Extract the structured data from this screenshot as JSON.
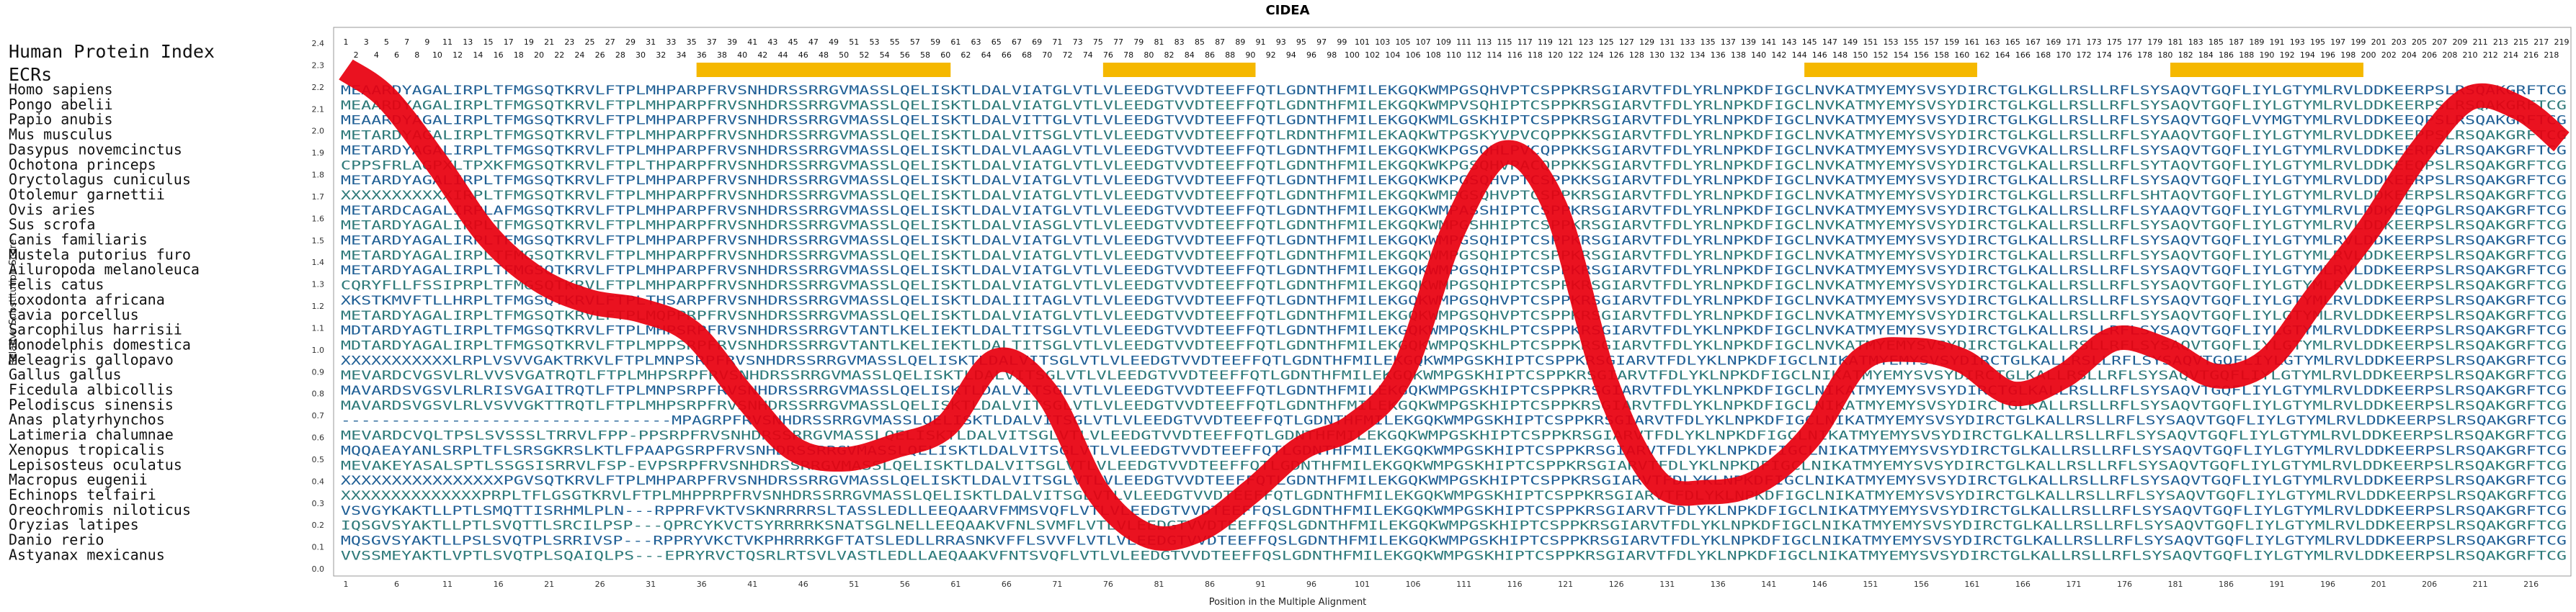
{
  "chart_data": {
    "type": "line",
    "title": "CIDEA",
    "xlabel": "Position in the Multiple Alignment",
    "ylabel": "Relative Substitution Score",
    "xlim": [
      1,
      219
    ],
    "ylim": [
      0.0,
      2.4
    ],
    "yticks": [
      "0.0",
      "0.1",
      "0.2",
      "0.3",
      "0.4",
      "0.5",
      "0.6",
      "0.7",
      "0.8",
      "0.9",
      "1.0",
      "1.1",
      "1.2",
      "1.3",
      "1.4",
      "1.5",
      "1.6",
      "1.7",
      "1.8",
      "1.9",
      "2.0",
      "2.1",
      "2.2",
      "2.3",
      "2.4"
    ],
    "xticks": [
      "1",
      "6",
      "11",
      "16",
      "21",
      "26",
      "31",
      "36",
      "41",
      "46",
      "51",
      "56",
      "61",
      "66",
      "71",
      "76",
      "81",
      "86",
      "91",
      "96",
      "101",
      "106",
      "111",
      "116",
      "121",
      "126",
      "131",
      "136",
      "141",
      "146",
      "151",
      "156",
      "161",
      "166",
      "171",
      "176",
      "181",
      "186",
      "191",
      "196",
      "201",
      "206",
      "211",
      "216"
    ],
    "top_label": "Human Protein Index",
    "ecrs_label": "ECRs",
    "ecr_regions": [
      [
        36,
        60
      ],
      [
        76,
        90
      ],
      [
        145,
        161
      ],
      [
        181,
        199
      ]
    ],
    "ecr_color": "#f5b800",
    "line_color": "#e8000f",
    "species": [
      "Homo sapiens",
      "Pongo abelii",
      "Papio anubis",
      "Mus musculus",
      "Dasypus novemcinctus",
      "Ochotona princeps",
      "Oryctolagus cuniculus",
      "Otolemur garnettii",
      "Ovis aries",
      "Sus scrofa",
      "Canis familiaris",
      "Mustela putorius furo",
      "Ailuropoda melanoleuca",
      "Felis catus",
      "Loxodonta africana",
      "Cavia porcellus",
      "Sarcophilus harrisii",
      "Monodelphis domestica",
      "Meleagris gallopavo",
      "Gallus gallus",
      "Ficedula albicollis",
      "Pelodiscus sinensis",
      "Anas platyrhynchos",
      "Latimeria chalumnae",
      "Xenopus tropicalis",
      "Lepisosteus oculatus",
      "Macropus eugenii",
      "Echinops telfairi",
      "Oreochromis niloticus",
      "Oryzias latipes",
      "Danio rerio",
      "Astyanax mexicanus"
    ],
    "sequences": [
      "MEAARDYAGALIRPLTFMGSQTKRVLFTPLMHPARPFRVSNHDRSSRRGVMASSLQELISKTLDALVIATGLVTLVLEEDGTVVDTEEFFQTLGDNTHFMILEKGQKWMPGSQHVPTCSPPKRSGIARVTFDLYRLNPKDFIGCLNVKATMYEMYSVSYDIRCTGLKGLLRSLLRFLSYSAQVTGQFLIYLGTYMLRVLDDKEERPSLRSQAKGRFTCG",
      "MEAARDYAGALIRPLTFMGSQTKRVLFTPLMHPARPFRVSNHDRSSRRGVMASSLQELISKTLDALVIATGLVTLVLEEDGTVVDTEEFFQTLGDNTHFMILEKGQKWMPVSQHIPTCSPPKRSGIARVTFDLYRLNPKDFIGCLNVKATMYEMYSVSYDIRCTGLKGLLRSLLRFLSYSAQVTGQFLIYLGTYMLRVLDDKEERPSLRSQAKGRFTCG",
      "MEAARDYAGALIRPLTFMGSQTKRVLFTPLMHPARPFRVSNHDRSSRRGVMASSLQELISKTLDALVITTGLVTLVLEEDGTVVDTEEFFQTLGDNTHFMILEKGQKWMLGSKHIPTCSPPKRSGIARVTFDLYRLNPKDFIGCLNVKATMYEMYSVSYDIRCTGLKGLLRSLLRFLSYSAQVTGQFLVYMGTYMLRVLDDKEEQPSLRSQAKGRFTCG",
      "METARDYAGALIRPLTFMGSQTKRVLFTPLMHPARPFRVSNHDRSSRRGVMASSLQELISKTLDALVITSGLVTLVLEEDGTVVDTEEFFQTLRDNTHFMILEKAQKWTPGSKYVPVCQPPKKSGIARVTFDLYRLNPKDFIGCLNVKATMYEMYSVSYDIRCTGLKGLLRSLLRFLSYAAQVTGQFLIYLGTYMLRVLDDKEEPPSLRSQAKGRFTCG",
      "METARDYAGALIRPLTFMGSQTKRVLFTPLMHPARPFRVSNHDRSSRRGVMASSLQELISKTLDALVLAAGLVTLVLEEDGTVVDTEEFFQTLGDNTHFMILEKGQKWKPGSQHLPVCQPPKKSGIARVTFDLYRLNPKDFIGCLNVKATMYEMYSVSYDIRCVGVKALLRSLLRFLSYSAQVTGQFLIYLGTYMLRVLDDKEERPGLRSQAKGRFTCG",
      "CPPSFRLAGPXLTPXKFMGSQTKRVLFTPLTHPARPFRVSNHDRSSRRGVMASSLQELISKTLDALVIATGLVTLVLEEDGTVVDTEEFFQTLGDNTHFMILEKGQKWKPGSQHVPACQPPKKSGIARVTFDLYRLNPKDFIGCLNVKATMYEMYSVSYDIRCTGLKALLRSLLRFLSYTAQVTGQFLIYLGTYMLRVLDDKEEQPSLRSQAKGRFTCG",
      "METARDYAGALIRPLTFMGSQTKRVLFTPLMHPARPFRVSNHDRSSRRGVMASSLQELISKTLDALVIATGLVTLVLEEDGTVVDTEEFFQTLGDNTHFMILEKGQKWKPGSQHVPTCSPPKKSGIARVTFDLYRLNPKDFIGCLNVKATMYEMYSVSYDIRCTGLKALLRSLLRFLSYSAQVTGQFLIYLGTYMLRVLDDKEERPSLRSQAKGRFTCG",
      "XXXXXXXXXXXIRPLTFMGSQTKRVLFTPLMHPARPFRVSNHDRSSRRGVMASSLQELISKTLDALVIATGLVTLVLEEDGTVVDTEEFFQTLGDNTHFMILEKGQKWMPGSQHVPTCSPPKRSGIARVTFDLYRLNPKDFIGCLNVKATMYEMYSVSYDIRCTGLKGLLRSLLRFLSHTAQVTGQFLIYLGTYMLRVLDDKEERPSLRSQAKGRFTCG",
      "METARDCAGALIRPLAFMGSQTKRVLFTPLMHPARPFRVSNHDRSSRRGVMASSLQELISKTLDALVIATGLVTLVLEEDGTVVDTEEFFQTLGDNTHFMILEKGQKWMPASSHIPTCSPPKRSGIARVTFDLYRLNPKDFIGCLNVKATMYEMYSVSYDIRCTGLKALLRSLLRFLSYAAQVTGQFLIYLGTYMLRVLDDKEEQPGLRSQAKGRFTCG",
      "METARDYAGALIRPLTFMGSQTKRVLFTPLMHPARPFRVSNHDRSSRRGVMASSLQELISKTLDALVIASGLVTLVLEEDGTVVDTEEFFQTLGDNTHFMILEKGQKWMPGSHHIPTCSPPKRSGIARVTFDLYRLNPKDFIGCLNVKATMYEMYSVSYDIRCTGLKALLRSLLRFLSYSAQVTGQFLIYLGTYMLRVLDDKEERPSLRSQAKGRFTCG",
      "METARDYAGALIRPLTFMGSQTKRVLFTPLMHPARPFRVSNHDRSSRRGVMASSLQELISKTLDALVIATGLVTLVLEEDGTVVDTEEFFQTLGDNTHFMILEKGQKWMPGSQHIPTCSPPKRSGIARVTFDLYRLNPKDFIGCLNVKATMYEMYSVSYDIRCTGLKALLRSLLRFLSYSAQVTGQFLIYLGTYMLRVLDDKEERPSLRSQAKGRFTCG",
      "METARDYAGALIRPLTFMGSQTKRVLFTPLMHPARPFRVSNHDRSSRRGVMASSLQELISKTLDALVIATGLVTLVLEEDGTVVDTEEFFQTLGDNTHFMILEKGQKWMPGSQHIPTCSPPKRSGIARVTFDLYRLNPKDFIGCLNVKATMYEMYSVSYDIRCTGLKALLRSLLRFLSYSAQVTGQFLIYLGTYMLRVLDDKEERPSLRSQAKGRFTCG",
      "METARDYAGALIRPLTFMGSQTKRVLFTPLMHPARPFRVSNHDRSSRRGVMASSLQELISKTLDALVIATGLVTLVLEEDGTVVDTEEFFQTLGDNTHFMILEKGQKWMPGSQHIPTCSPPKRSGIARVTFDLYRLNPKDFIGCLNVKATMYEMYSVSYDIRCTGLKALLRSLLRFLSYSAQVTGQFLIYLGTYMLRVLDDKEERPSLRSQAKGRFTCG",
      "CQRYFLLFSSIPRPLTFMGSQTKRVLFTPLMHPARPFRVSNHDRSSRRGVMASSLQELISKTLDALVIATGLVTLVLEEDGTVVDTEEFFQTLGDNTHFMILEKGQKWMPGSQHIPTCSPPKRSGIARVTFDLYRLNPKDFIGCLNVKATMYEMYSVSYDIRCTGLKALLRSLLRFLSYSAQVTGQFLIYLGTYMLRVLDDKEERPSLRSQAKGRFTCG",
      "XKSTKMVFTLLHRPLTFMGSQTKRVLFTPLTHSARPFRVSNHDRSSRRGVMASSLQELISKTLDALIITAGLVTLVLEEDGTVVDTEEFFQTLGDNTHFMILEKGQKWMPGSQHVPTCSPPKRSGIARVTFDLYRLNPKDFIGCLNVKATMYEMYSVSYDIRCTGLKALLRSLLRFLSYSAQVTGQFLIYLGTYMLRVLDDKEERPSLRSQAKGRFTCG",
      "METARDYAGALIRPLTFMGSQTKRVLFTPLMQPPRPFRVSNHDRSSRRGVMASSLQELISKTLDALVIATGLVTLVLEEDGTVVDTEEFFQTLGDNTHFMILEKGQKWMPGSQHVPTCSPPKRSGIARVTFDLYRLNPKDFIGCLNVKATMYEMYSVSYDIRCTGLKALLRSLLRFLSYSAQVTGQFLIYLGTYMLRVLDDKEERPSLRSQAKGRFTCG",
      "MDTARDYAGTLIRPLTFMGSQTKRVLFTPLMHPSRPFRVSNHDRSSRRGVTANTLKELIEKTLDALTITSGLVTLVLEEDGTVVDTEEFFQTLGDNTHFMILEKGQKWMPQSKHLPTCSPPKRSGIARVTFDLYKLNPKDFIGCLNVKATMYEMYSVSYDIRCTGLKALLRSLLRFLSYSAQVTGQFLIYLGTYMLRVLDDKEERPSLRSQAKGRFTCG",
      "MDTARDYAGALIRPLTFMGSQTKRVLFTPLMPPSRPFRVSNHDRSSRRGVTANTLKELIEKTLDALTITSGLVTLVLEEDGTVVDTEEFFQTLGDNTHFMILEKGQKWMPQSKHLPTCSPPKRSGIARVTFDLYKLNPKDFIGCLNVKATMYEMYSVSYDIRCTGLKALLRSLLRFLSYSAQVTGQFLIYLGTYMLRVLDDKEERPSLRSQAKGRFTCG",
      "XXXXXXXXXXXLRPLVSVVGAKTRKVLFTPLMNPSRPFRVSNHDRSSRRGVMASSLQELISKTLDALVITSGLVTLVLEEDGTVVDTEEFFQTLGDNTHFMILEKGQKWMPGSKHIPTCSPPKRSGIARVTFDLYKLNPKDFIGCLNIKATMYEMYSVSYDIRCTGLKALLRSLLRFLSYSAQVTGQFLIYLGTYMLRVLDDKEERPSLRSQAKGRFTCG",
      "MEVARDCVGSVLRLVVSVGATRQTLFTPLMHPSRPFRVSNHDRSSRRGVMASSLQELISKTLDALVITSGLVTLVLEEDGTVVDTEEFFQTLGDNTHFMILEKGQKWMPGSKHIPTCSPPKRSGIARVTFDLYKLNPKDFIGCLNIKATMYEMYSVSYDIRCTGLKALLRSLLRFLSYSAQVTGQFLIYLGTYMLRVLDDKEERPSLRSQAKGRFTCG",
      "MAVARDSVGSVLRLRISVGAITRQTLFTPLMNPSRPFRVSNHDRSSRRGVMASSLQELISKTLDALVITSGLVTLVLEEDGTVVDTEEFFQTLGDNTHFMILEKGQKWMPGSKHIPTCSPPKRSGIARVTFDLYKLNPKDFIGCLNIKATMYEMYSVSYDIRCTGLKALLRSLLRFLSYSAQVTGQFLIYLGTYMLRVLDDKEERPSLRSQAKGRFTCG",
      "MAVARDSVGSVLRLVSVVGKTTRQTLFTPLMHPSRPFRVSNHDRSSRRGVMASSLQELISKTLDALVITSGLVTLVLEEDGTVVDTEEFFQTLGDNTHFMILEKGQKWMPGSKHIPTCSPPKRSGIARVTFDLYKLNPKDFIGCLNIKATMYEMYSVSYDIRCTGLKALLRSLLRFLSYSAQVTGQFLIYLGTYMLRVLDDKEERPSLRSQAKGRFTCG",
      "---------------------------------MPAGRPFRVSNHDRSSRRGVMASSLQELISKTLDALVITSGLVTLVLEEDGTVVDTEEFFQTLGDNTHFMILEKGQKWMPGSKHIPTCSPPKRSGIARVTFDLYKLNPKDFIGCLNIKATMYEMYSVSYDIRCTGLKALLRSLLRFLSYSAQVTGQFLIYLGTYMLRVLDDKEERPSLRSQAKGRFTCG",
      "MEVARDCVQLTPSLSVSSSLTRRVLFPP-PPSRPFRVSNHDRSSRRGVMASSLQELISKTLDALVITSGLVTLVLEEDGTVVDTEEFFQTLGDNTHFMILEKGQKWMPGSKHIPTCSPPKRSGIARVTFDLYKLNPKDFIGCLNIKATMYEMYSVSYDIRCTGLKALLRSLLRFLSYSAQVTGQFLIYLGTYMLRVLDDKEERPSLRSQAKGRFTCG",
      "MQQAEAYANLSRPLTFLSRSGKRSLKTLFPAAPGSRPFRVSNHDRSSRRGVMASSLQELISKTLDALVITSGLVTLVLEEDGTVVDTEEFFQTLGDNTHFMILEKGQKWMPGSKHIPTCSPPKRSGIARVTFDLYKLNPKDFIGCLNIKATMYEMYSVSYDIRCTGLKALLRSLLRFLSYSAQVTGQFLIYLGTYMLRVLDDKEERPSLRSQAKGRFTCG",
      "MEVAKEYASALSPTLSSGSISRRVLFSP-EVPSRPFRVSNHDRSSRRGVMASSLQELISKTLDALVITSGLVTLVLEEDGTVVDTEEFFQTLGDNTHFMILEKGQKWMPGSKHIPTCSPPKRSGIARVTFDLYKLNPKDFIGCLNIKATMYEMYSVSYDIRCTGLKALLRSLLRFLSYSAQVTGQFLIYLGTYMLRVLDDKEERPSLRSQAKGRFTCG",
      "XXXXXXXXXXXXXXXXPGVSQTKRVLFTPLMHPARPFRVSNHDRSSRRGVMASSLQELISKTLDALVITSGLVTLVLEEDGTVVDTEEFFQTLGDNTHFMILEKGQKWMPGSKHIPTCSPPKRSGIARVTFDLYKLNPKDFIGCLNIKATMYEMYSVSYDIRCTGLKALLRSLLRFLSYSAQVTGQFLIYLGTYMLRVLDDKEERPSLRSQAKGRFTCG",
      "XXXXXXXXXXXXXXPRPLTFLGSGTKRVLFTPLMHPPRPFRVSNHDRSSRRGVMASSLQELISKTLDALVITSGLVTLVLEEDGTVVDTEEFFQTLGDNTHFMILEKGQKWMPGSKHIPTCSPPKRSGIARVTFDLYKLNPKDFIGCLNIKATMYEMYSVSYDIRCTGLKALLRSLLRFLSYSAQVTGQFLIYLGTYMLRVLDDKEERPSLRSQAKGRFTCG",
      "VSVGYKAKTLLPTLSMQTTISRHMLPLN---RPPRFVKTVSKNRRRRSLTASSLEDLLEEQAARVFMMSVQFLVTLVLEEDGTVVDTEEFFQSLGDNTHFMILEKGQKWMPGSKHIPTCSPPKRSGIARVTFDLYKLNPKDFIGCLNIKATMYEMYSVSYDIRCTGLKALLRSLLRFLSYSAQVTGQFLIYLGTYMLRVLDDKEERPSLRSQAKGRFTCG",
      "IQSGVSYAKTLLPTLSVQTTLSRCILPSP---QPRCYKVCTSYRRRRKSNATSGLNELLEEQAAKVFNLSVMFLVTLVLEEDGTVVDTEEFFQSLGDNTHFMILEKGQKWMPGSKHIPTCSPPKRSGIARVTFDLYKLNPKDFIGCLNIKATMYEMYSVSYDIRCTGLKALLRSLLRFLSYSAQVTGQFLIYLGTYMLRVLDDKEERPSLRSQAKGRFTCG",
      "MQSGVSYAKTLLPSLSVQTPLSRRIVSP---RPPRYVKCTVKPHRRRKGFTATSLEDLLRRASNKVFFLSVVFLVTLVLEEDGTVVDTEEFFQSLGDNTHFMILEKGQKWMPGSKHIPTCSPPKRSGIARVTFDLYKLNPKDFIGCLNIKATMYEMYSVSYDIRCTGLKALLRSLLRFLSYSAQVTGQFLIYLGTYMLRVLDDKEERPSLRSQAKGRFTCG",
      "VVSSMEYAKTLVPTLSVQTPLSQAIQLPS---EPRYRVCTQSRLRTSVLVASTLEDLLAEQAAKVFNTSVQFLVTLVLEEDGTVVDTEEFFQSLGDNTHFMILEKGQKWMPGSKHIPTCSPPKRSGIARVTFDLYKLNPKDFIGCLNIKATMYEMYSVSYDIRCTGLKALLRSLLRFLSYSAQVTGQFLIYLGTYMLRVLDDKEERPSLRSQAKGRFTCG"
    ],
    "x": [
      1,
      5,
      10,
      15,
      20,
      25,
      30,
      35,
      40,
      45,
      50,
      55,
      60,
      65,
      70,
      75,
      80,
      85,
      90,
      95,
      100,
      105,
      110,
      115,
      120,
      125,
      130,
      135,
      140,
      145,
      150,
      155,
      160,
      165,
      170,
      175,
      180,
      185,
      190,
      195,
      200,
      205,
      210,
      215,
      219
    ],
    "values": [
      2.28,
      2.15,
      1.85,
      1.52,
      1.32,
      1.22,
      1.18,
      1.08,
      0.8,
      0.55,
      0.5,
      0.56,
      0.65,
      0.95,
      0.8,
      0.35,
      0.15,
      0.18,
      0.35,
      0.55,
      0.65,
      0.9,
      1.55,
      1.9,
      1.65,
      0.85,
      0.4,
      0.35,
      0.4,
      0.6,
      0.95,
      1.0,
      0.95,
      0.8,
      0.88,
      1.05,
      1.0,
      0.88,
      0.95,
      1.25,
      1.55,
      1.9,
      2.15,
      2.1,
      1.95
    ]
  }
}
